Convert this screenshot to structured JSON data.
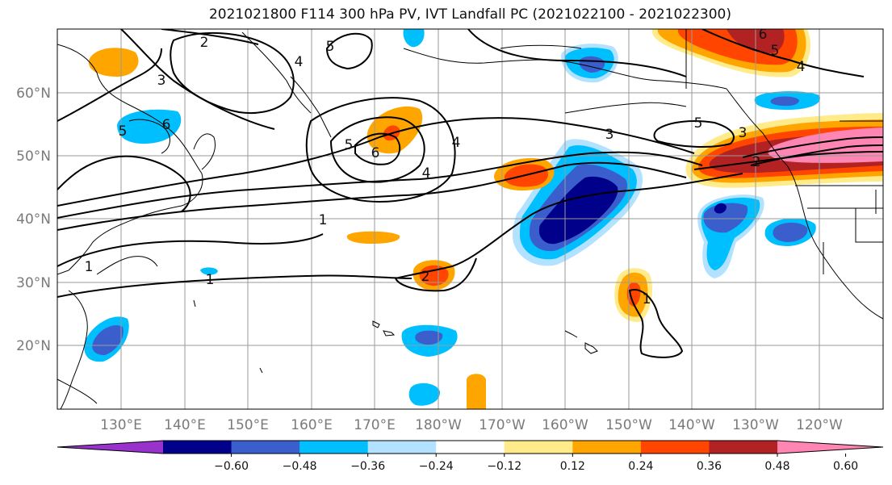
{
  "title": "2021021800 F114 300 hPa PV, IVT Landfall PC (2021022100 - 2021022300)",
  "lat_labels": [
    "60°N",
    "50°N",
    "40°N",
    "30°N",
    "20°N"
  ],
  "lon_labels": [
    "130°E",
    "140°E",
    "150°E",
    "160°E",
    "170°E",
    "180°W",
    "170°W",
    "160°W",
    "150°W",
    "140°W",
    "130°W",
    "120°W"
  ],
  "colorbar": {
    "levels": [
      -0.72,
      -0.6,
      -0.48,
      -0.36,
      -0.24,
      -0.12,
      0.12,
      0.24,
      0.36,
      0.48,
      0.6,
      0.72
    ],
    "tick_labels": [
      "−0.60",
      "−0.48",
      "−0.36",
      "−0.24",
      "−0.12",
      "0.12",
      "0.24",
      "0.36",
      "0.48",
      "0.60"
    ],
    "colors": [
      "#9932cc",
      "#00008b",
      "#3a5fcd",
      "#00bfff",
      "#b2e2ff",
      "#ffffff",
      "#ffeb8a",
      "#ffa500",
      "#ff4500",
      "#b22222",
      "#ff85b3"
    ]
  },
  "contour_labels": [
    "2",
    "5",
    "4",
    "3",
    "5",
    "6",
    "5",
    "6",
    "4",
    "3",
    "4",
    "5",
    "6",
    "5",
    "4",
    "3",
    "2",
    "1",
    "1",
    "1",
    "2",
    "1"
  ]
}
